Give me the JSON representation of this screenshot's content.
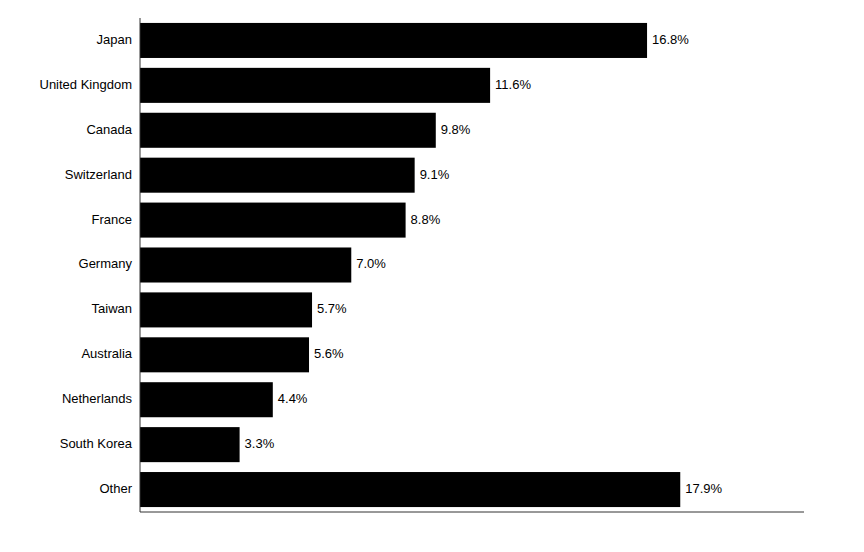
{
  "chart_data": {
    "type": "bar",
    "orientation": "horizontal",
    "categories": [
      "Japan",
      "United Kingdom",
      "Canada",
      "Switzerland",
      "France",
      "Germany",
      "Taiwan",
      "Australia",
      "Netherlands",
      "South Korea",
      "Other"
    ],
    "values": [
      16.8,
      11.6,
      9.8,
      9.1,
      8.8,
      7.0,
      5.7,
      5.6,
      4.4,
      3.3,
      17.9
    ],
    "value_labels": [
      "16.8%",
      "11.6%",
      "9.8%",
      "9.1%",
      "8.8%",
      "7.0%",
      "5.7%",
      "5.6%",
      "4.4%",
      "3.3%",
      "17.9%"
    ],
    "color": "#000000",
    "xlim": [
      0,
      22
    ],
    "data_labels": true,
    "tick_labels": "y",
    "grid": false
  }
}
